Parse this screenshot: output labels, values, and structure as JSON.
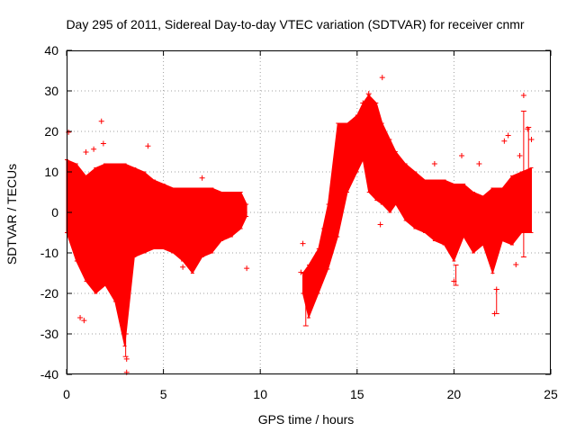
{
  "chart_data": {
    "type": "scatter",
    "title": "Day 295 of 2011, Sidereal Day-to-day VTEC variation (SDTVAR) for receiver cnmr",
    "xlabel": "GPS time / hours",
    "ylabel": "SDTVAR / TECUs",
    "xlim": [
      0,
      25
    ],
    "ylim": [
      -40,
      40
    ],
    "x_ticks": [
      {
        "value": 0,
        "label": "0"
      },
      {
        "value": 5,
        "label": "5"
      },
      {
        "value": 10,
        "label": "10"
      },
      {
        "value": 15,
        "label": "15"
      },
      {
        "value": 20,
        "label": "20"
      },
      {
        "value": 25,
        "label": "25"
      }
    ],
    "y_ticks": [
      {
        "value": -40,
        "label": "-40"
      },
      {
        "value": -30,
        "label": "-30"
      },
      {
        "value": -20,
        "label": "-20"
      },
      {
        "value": -10,
        "label": "-10"
      },
      {
        "value": 0,
        "label": "0"
      },
      {
        "value": 10,
        "label": "10"
      },
      {
        "value": 20,
        "label": "20"
      },
      {
        "value": 30,
        "label": "30"
      },
      {
        "value": 40,
        "label": "40"
      }
    ],
    "grid": true,
    "series": [
      {
        "name": "SDTVAR",
        "color": "#ff0000",
        "marker": "plus",
        "envelope_segments": [
          {
            "x": [
              0.0,
              0.5,
              1.0,
              1.5,
              2.0,
              2.5,
              3.0,
              3.5,
              4.0,
              4.5,
              5.0,
              5.5,
              6.0,
              6.5,
              7.0,
              7.5,
              8.0,
              8.5,
              9.0,
              9.3
            ],
            "upper": [
              13,
              12,
              9,
              11,
              12,
              12,
              12,
              11,
              10,
              8,
              7,
              6,
              6,
              6,
              6,
              6,
              5,
              5,
              5,
              2
            ],
            "lower": [
              -5,
              -12,
              -17,
              -20,
              -18,
              -22,
              -33,
              -11,
              -10,
              -9,
              -9,
              -10,
              -12,
              -15,
              -11,
              -10,
              -7,
              -6,
              -4,
              -1
            ]
          },
          {
            "x": [
              12.2,
              12.5,
              13.0,
              13.5,
              14.0,
              14.5,
              15.0,
              15.3,
              15.6,
              16.0,
              16.3,
              16.7,
              17.0,
              17.5,
              18.0,
              18.5,
              19.0,
              19.5,
              20.0,
              20.5,
              21.0,
              21.5,
              22.0,
              22.5,
              23.0,
              23.5,
              24.0
            ],
            "upper": [
              -15,
              -13,
              -9,
              2,
              22,
              22,
              24,
              27,
              29,
              27,
              22,
              18,
              15,
              12,
              10,
              8,
              8,
              8,
              7,
              7,
              5,
              4,
              6,
              6,
              9,
              10,
              11
            ],
            "lower": [
              -20,
              -26,
              -20,
              -14,
              -6,
              5,
              10,
              13,
              5,
              3,
              2,
              0,
              2,
              -2,
              -4,
              -5,
              -7,
              -8,
              -12,
              -6,
              -10,
              -8,
              -15,
              -7,
              -8,
              -5,
              -5
            ]
          }
        ],
        "points": [
          {
            "x": 0.1,
            "y": 19.8
          },
          {
            "x": 1.0,
            "y": 14.9
          },
          {
            "x": 1.4,
            "y": 15.6
          },
          {
            "x": 1.8,
            "y": 22.5
          },
          {
            "x": 1.9,
            "y": 17.0
          },
          {
            "x": 4.2,
            "y": 16.4
          },
          {
            "x": 0.7,
            "y": -26.0
          },
          {
            "x": 0.9,
            "y": -26.7
          },
          {
            "x": 3.1,
            "y": -36.2
          },
          {
            "x": 3.1,
            "y": -39.5
          },
          {
            "x": 2.5,
            "y": -12.0
          },
          {
            "x": 6.0,
            "y": -13.5
          },
          {
            "x": 7.0,
            "y": 8.5
          },
          {
            "x": 9.3,
            "y": -13.8
          },
          {
            "x": 12.2,
            "y": -7.7
          },
          {
            "x": 12.1,
            "y": -14.8
          },
          {
            "x": 13.3,
            "y": -4.0
          },
          {
            "x": 13.8,
            "y": 0.3
          },
          {
            "x": 15.3,
            "y": 27.0
          },
          {
            "x": 15.6,
            "y": 29.3
          },
          {
            "x": 16.2,
            "y": -3.0
          },
          {
            "x": 16.3,
            "y": 33.3
          },
          {
            "x": 19.0,
            "y": 12.0
          },
          {
            "x": 20.0,
            "y": -17.0
          },
          {
            "x": 20.4,
            "y": 14.0
          },
          {
            "x": 21.3,
            "y": 12.0
          },
          {
            "x": 22.1,
            "y": -25.0
          },
          {
            "x": 22.2,
            "y": -19.0
          },
          {
            "x": 22.6,
            "y": 17.6
          },
          {
            "x": 22.8,
            "y": 19.0
          },
          {
            "x": 23.2,
            "y": -12.9
          },
          {
            "x": 23.4,
            "y": 14.0
          },
          {
            "x": 23.6,
            "y": 28.9
          },
          {
            "x": 23.8,
            "y": 20.6
          },
          {
            "x": 24.0,
            "y": 18.0
          }
        ],
        "error_bars": [
          {
            "x": 3.05,
            "low": -35.6,
            "high": -30.0
          },
          {
            "x": 22.2,
            "low": -25.0,
            "high": -19.0
          },
          {
            "x": 23.6,
            "low": -11.0,
            "high": 25.0
          },
          {
            "x": 23.85,
            "low": -2.0,
            "high": 21.0
          },
          {
            "x": 20.1,
            "low": -18.0,
            "high": -13.0
          },
          {
            "x": 12.35,
            "low": -28.0,
            "high": -18.0
          }
        ]
      }
    ]
  }
}
